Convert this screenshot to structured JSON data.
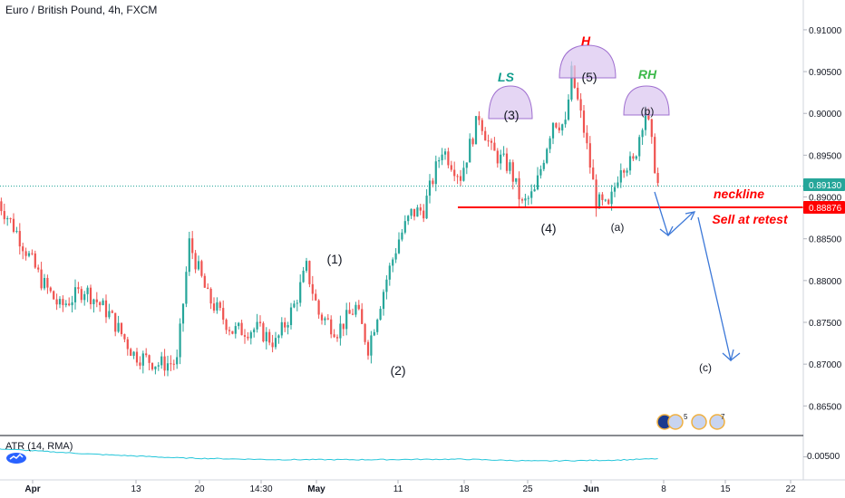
{
  "header": {
    "title": "Euro / British Pound, 4h, FXCM"
  },
  "indicator": {
    "label": "ATR (14, RMA)",
    "tick": "0.00500"
  },
  "price_labels": {
    "current": "0.89130",
    "neckline": "0.88876"
  },
  "colors": {
    "up": "#26a69a",
    "down": "#ef5350",
    "neckline": "#ff0000",
    "arrows": "#3c78d8",
    "pattern_fill": "#dcc8f0",
    "pattern_stroke": "#a070d0",
    "ls_text": "#129e8e",
    "h_text": "#ff0000",
    "rh_text": "#3cb94a",
    "atr_line": "#26c6da",
    "current_line": "#26a69a"
  },
  "annotations": {
    "wave_labels": [
      "(1)",
      "(2)",
      "(3)",
      "(4)",
      "(5)",
      "(a)",
      "(b)",
      "(c)"
    ],
    "ls": "LS",
    "h": "H",
    "rh": "RH",
    "neckline": "neckline",
    "sell": "Sell at retest"
  },
  "calendar_counts": [
    "5",
    "7"
  ],
  "chart_data": {
    "type": "candlestick",
    "instrument": "Euro / British Pound",
    "timeframe": "4h",
    "y_ticks": [
      "0.91000",
      "0.90500",
      "0.90000",
      "0.89500",
      "0.89000",
      "0.88500",
      "0.88000",
      "0.87500",
      "0.87000",
      "0.86500"
    ],
    "x_ticks": [
      "Apr",
      "13",
      "20",
      "14:30",
      "May",
      "11",
      "18",
      "25",
      "Jun",
      "8",
      "15",
      "22"
    ],
    "ylim": [
      0.862,
      0.914
    ],
    "neckline": 0.88876,
    "last_price": 0.8913,
    "waypoints": [
      [
        0,
        0.8895
      ],
      [
        6,
        0.8858
      ],
      [
        14,
        0.88
      ],
      [
        20,
        0.8768
      ],
      [
        28,
        0.879
      ],
      [
        36,
        0.876
      ],
      [
        44,
        0.8712
      ],
      [
        52,
        0.87
      ],
      [
        58,
        0.8702
      ],
      [
        62,
        0.8845
      ],
      [
        68,
        0.878
      ],
      [
        76,
        0.874
      ],
      [
        84,
        0.8742
      ],
      [
        90,
        0.8725
      ],
      [
        96,
        0.877
      ],
      [
        100,
        0.8815
      ],
      [
        104,
        0.876
      ],
      [
        110,
        0.874
      ],
      [
        116,
        0.8768
      ],
      [
        120,
        0.872
      ],
      [
        126,
        0.8802
      ],
      [
        130,
        0.885
      ],
      [
        134,
        0.888
      ],
      [
        138,
        0.8885
      ],
      [
        144,
        0.8958
      ],
      [
        150,
        0.8925
      ],
      [
        156,
        0.8998
      ],
      [
        160,
        0.8955
      ],
      [
        166,
        0.8935
      ],
      [
        170,
        0.889
      ],
      [
        174,
        0.8905
      ],
      [
        180,
        0.8992
      ],
      [
        184,
        0.8985
      ],
      [
        186,
        0.9048
      ],
      [
        190,
        0.898
      ],
      [
        194,
        0.8895
      ],
      [
        198,
        0.8885
      ],
      [
        202,
        0.894
      ],
      [
        206,
        0.894
      ],
      [
        210,
        0.9008
      ],
      [
        214,
        0.8915
      ]
    ],
    "atr": {
      "ylim": [
        0.0044,
        0.0058
      ],
      "waypoints": [
        [
          0,
          0.00535
        ],
        [
          30,
          0.00512
        ],
        [
          60,
          0.00495
        ],
        [
          90,
          0.00488
        ],
        [
          120,
          0.00488
        ],
        [
          150,
          0.0049
        ],
        [
          175,
          0.00482
        ],
        [
          200,
          0.00486
        ],
        [
          214,
          0.00492
        ]
      ]
    }
  }
}
